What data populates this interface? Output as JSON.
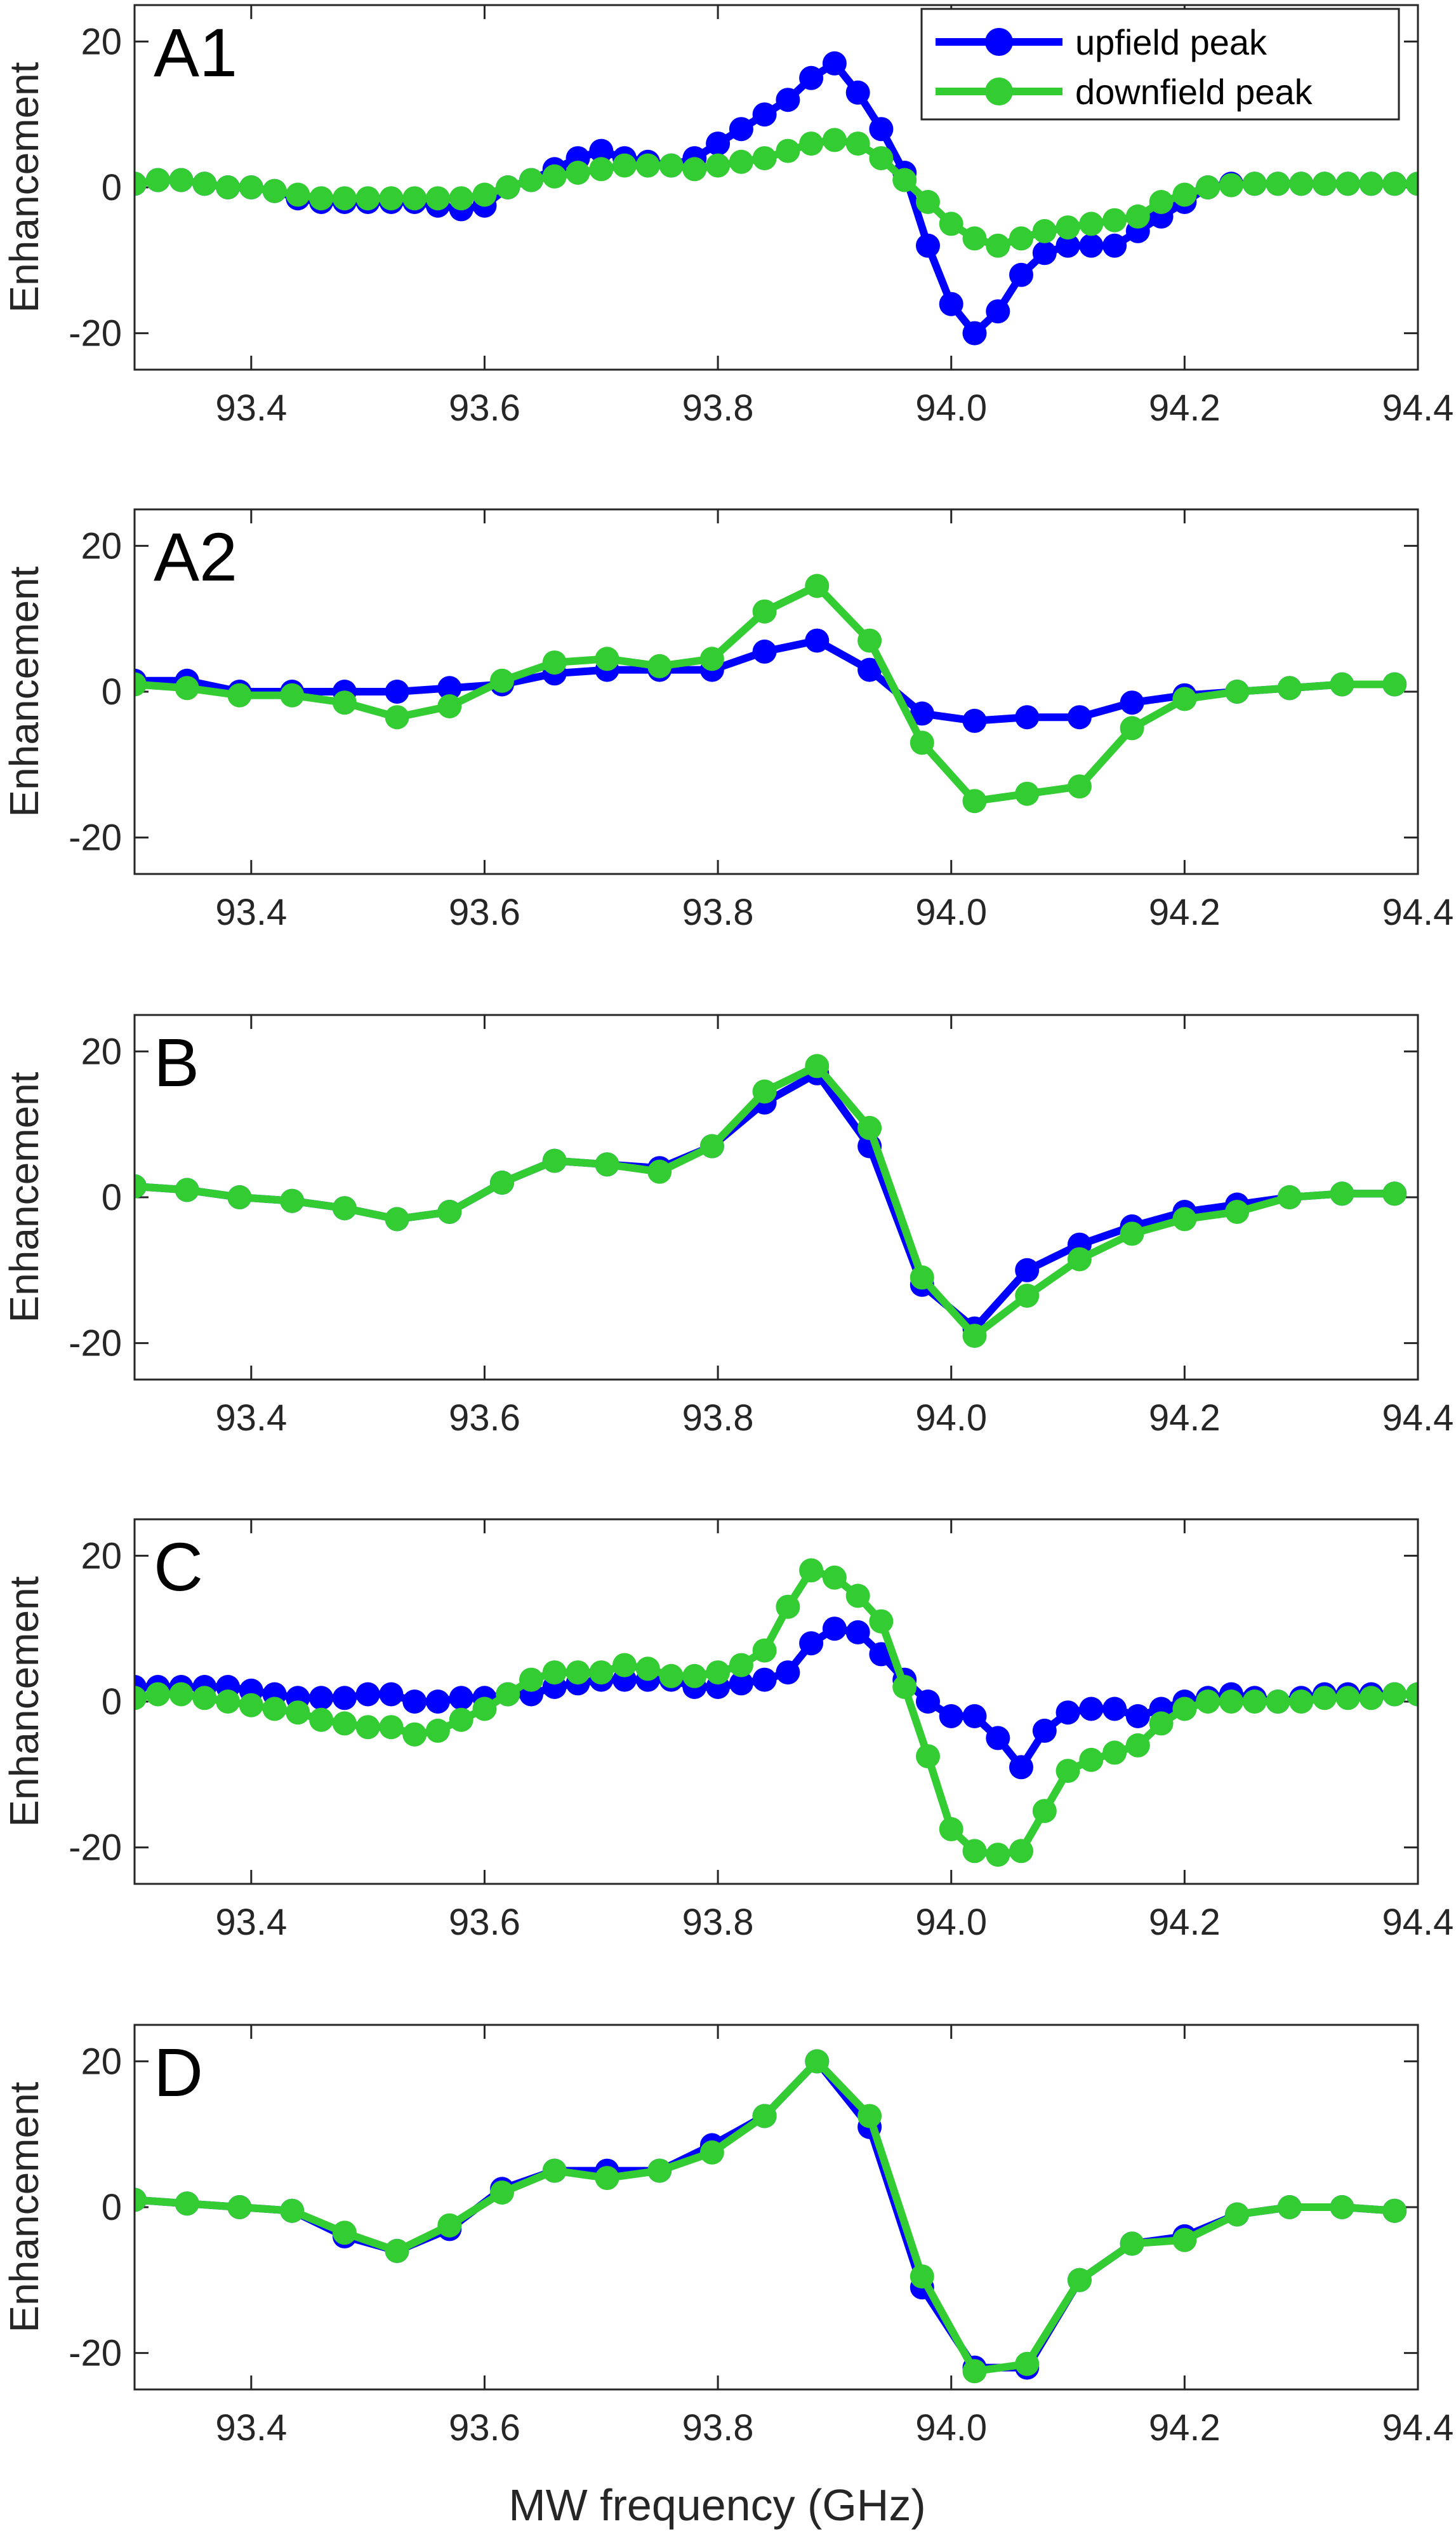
{
  "chart_data": {
    "type": "line",
    "xlabel": "MW frequency (GHz)",
    "ylabel": "Enhancement",
    "xlim": [
      93.3,
      94.4
    ],
    "ylim": [
      -25,
      25
    ],
    "xticks": [
      "93.4",
      "93.6",
      "93.8",
      "94.0",
      "94.2",
      "94.4"
    ],
    "xtick_values": [
      93.4,
      93.6,
      93.8,
      94.0,
      94.2,
      94.4
    ],
    "yticks": [
      "20",
      "0",
      "-20"
    ],
    "ytick_values": [
      20,
      0,
      -20
    ],
    "legend": {
      "placement": "top-right",
      "panel": 0,
      "entries": [
        "upfield peak",
        "downfield peak"
      ]
    },
    "series_styles": [
      {
        "name": "upfield peak",
        "color": "#0000ff"
      },
      {
        "name": "downfield peak",
        "color": "#33cc33"
      }
    ],
    "panels": [
      {
        "label": "A1",
        "series": [
          {
            "name": "upfield peak",
            "x": [
              93.3,
              93.32,
              93.34,
              93.36,
              93.38,
              93.4,
              93.42,
              93.44,
              93.46,
              93.48,
              93.5,
              93.52,
              93.54,
              93.56,
              93.58,
              93.6,
              93.62,
              93.64,
              93.66,
              93.68,
              93.7,
              93.72,
              93.74,
              93.76,
              93.78,
              93.8,
              93.82,
              93.84,
              93.86,
              93.88,
              93.9,
              93.92,
              93.94,
              93.96,
              93.98,
              94.0,
              94.02,
              94.04,
              94.06,
              94.08,
              94.1,
              94.12,
              94.14,
              94.16,
              94.18,
              94.2,
              94.22,
              94.24,
              94.26,
              94.28,
              94.3,
              94.32,
              94.34,
              94.36,
              94.38,
              94.4
            ],
            "y": [
              0.5,
              1,
              1,
              0.5,
              0,
              0,
              -0.5,
              -1.5,
              -2,
              -2,
              -2,
              -2,
              -2,
              -2.5,
              -3,
              -2.5,
              0,
              1,
              2.5,
              4,
              5,
              4,
              3.5,
              3,
              4,
              6,
              8,
              10,
              12,
              15,
              17,
              13,
              8,
              2,
              -8,
              -16,
              -20,
              -17,
              -12,
              -9,
              -8,
              -8,
              -8,
              -6,
              -4,
              -2,
              0,
              0.5,
              0.5,
              0.5,
              0.5,
              0.5,
              0.5,
              0.5,
              0.5,
              0.5
            ]
          },
          {
            "name": "downfield peak",
            "x": [
              93.3,
              93.32,
              93.34,
              93.36,
              93.38,
              93.4,
              93.42,
              93.44,
              93.46,
              93.48,
              93.5,
              93.52,
              93.54,
              93.56,
              93.58,
              93.6,
              93.62,
              93.64,
              93.66,
              93.68,
              93.7,
              93.72,
              93.74,
              93.76,
              93.78,
              93.8,
              93.82,
              93.84,
              93.86,
              93.88,
              93.9,
              93.92,
              93.94,
              93.96,
              93.98,
              94.0,
              94.02,
              94.04,
              94.06,
              94.08,
              94.1,
              94.12,
              94.14,
              94.16,
              94.18,
              94.2,
              94.22,
              94.24,
              94.26,
              94.28,
              94.3,
              94.32,
              94.34,
              94.36,
              94.38,
              94.4
            ],
            "y": [
              0.5,
              1,
              1,
              0.5,
              0,
              0,
              -0.5,
              -1,
              -1.5,
              -1.5,
              -1.5,
              -1.5,
              -1.5,
              -1.5,
              -1.5,
              -1,
              0,
              1,
              1.5,
              2,
              2.5,
              3,
              3,
              3,
              2.5,
              3,
              3.5,
              4,
              5,
              6,
              6.5,
              6,
              4,
              1,
              -2,
              -5,
              -7,
              -8,
              -7,
              -6,
              -5.5,
              -5,
              -4.5,
              -4,
              -2,
              -1,
              0,
              0.3,
              0.5,
              0.5,
              0.5,
              0.5,
              0.5,
              0.5,
              0.5,
              0.5
            ]
          }
        ]
      },
      {
        "label": "A2",
        "series": [
          {
            "name": "upfield peak",
            "x": [
              93.3,
              93.345,
              93.39,
              93.435,
              93.48,
              93.525,
              93.57,
              93.615,
              93.66,
              93.705,
              93.75,
              93.795,
              93.84,
              93.885,
              93.93,
              93.975,
              94.02,
              94.065,
              94.11,
              94.155,
              94.2,
              94.245,
              94.29,
              94.335,
              94.38
            ],
            "y": [
              1.5,
              1.5,
              0,
              0,
              0,
              0,
              0.5,
              1,
              2.5,
              3,
              3,
              3,
              5.5,
              7,
              3,
              -3,
              -4,
              -3.5,
              -3.5,
              -1.5,
              -0.5,
              0,
              0.5,
              1,
              1
            ]
          },
          {
            "name": "downfield peak",
            "x": [
              93.3,
              93.345,
              93.39,
              93.435,
              93.48,
              93.525,
              93.57,
              93.615,
              93.66,
              93.705,
              93.75,
              93.795,
              93.84,
              93.885,
              93.93,
              93.975,
              94.02,
              94.065,
              94.11,
              94.155,
              94.2,
              94.245,
              94.29,
              94.335,
              94.38
            ],
            "y": [
              1,
              0.5,
              -0.5,
              -0.5,
              -1.5,
              -3.5,
              -2,
              1.5,
              4,
              4.5,
              3.5,
              4.5,
              11,
              14.5,
              7,
              -7,
              -15,
              -14,
              -13,
              -5,
              -1,
              0,
              0.5,
              1,
              1
            ]
          }
        ]
      },
      {
        "label": "B",
        "series": [
          {
            "name": "upfield peak",
            "x": [
              93.3,
              93.345,
              93.39,
              93.435,
              93.48,
              93.525,
              93.57,
              93.615,
              93.66,
              93.705,
              93.75,
              93.795,
              93.84,
              93.885,
              93.93,
              93.975,
              94.02,
              94.065,
              94.11,
              94.155,
              94.2,
              94.245,
              94.29,
              94.335,
              94.38
            ],
            "y": [
              1.5,
              1,
              0,
              -0.5,
              -1.5,
              -3,
              -2,
              2,
              5,
              4.5,
              4,
              7,
              13,
              17,
              7,
              -12,
              -18,
              -10,
              -6.5,
              -4,
              -2,
              -1,
              0,
              0.5,
              0.5
            ]
          },
          {
            "name": "downfield peak",
            "x": [
              93.3,
              93.345,
              93.39,
              93.435,
              93.48,
              93.525,
              93.57,
              93.615,
              93.66,
              93.705,
              93.75,
              93.795,
              93.84,
              93.885,
              93.93,
              93.975,
              94.02,
              94.065,
              94.11,
              94.155,
              94.2,
              94.245,
              94.29,
              94.335,
              94.38
            ],
            "y": [
              1.5,
              1,
              0,
              -0.5,
              -1.5,
              -3,
              -2,
              2,
              5,
              4.5,
              3.5,
              7,
              14.5,
              18,
              9.5,
              -11,
              -19,
              -13.5,
              -8.5,
              -5,
              -3,
              -2,
              0,
              0.5,
              0.5
            ]
          }
        ]
      },
      {
        "label": "C",
        "series": [
          {
            "name": "upfield peak",
            "x": [
              93.3,
              93.32,
              93.34,
              93.36,
              93.38,
              93.4,
              93.42,
              93.44,
              93.46,
              93.48,
              93.5,
              93.52,
              93.54,
              93.56,
              93.58,
              93.6,
              93.62,
              93.64,
              93.66,
              93.68,
              93.7,
              93.72,
              93.74,
              93.76,
              93.78,
              93.8,
              93.82,
              93.84,
              93.86,
              93.88,
              93.9,
              93.92,
              93.94,
              93.96,
              93.98,
              94.0,
              94.02,
              94.04,
              94.06,
              94.08,
              94.1,
              94.12,
              94.14,
              94.16,
              94.18,
              94.2,
              94.22,
              94.24,
              94.26,
              94.28,
              94.3,
              94.32,
              94.34,
              94.36,
              94.38,
              94.4
            ],
            "y": [
              2,
              2,
              2,
              2,
              2,
              1.5,
              1,
              0.5,
              0.5,
              0.5,
              1,
              1,
              0,
              0,
              0.5,
              0.5,
              1,
              1,
              2,
              2.5,
              3,
              3,
              3,
              3,
              2,
              2,
              2.5,
              3,
              4,
              8,
              10,
              9.5,
              6.5,
              3,
              0,
              -2,
              -2,
              -5,
              -9,
              -4,
              -1.5,
              -1,
              -1,
              -2,
              -1,
              0,
              0.5,
              1,
              0.5,
              0,
              0.5,
              1,
              1,
              1,
              1,
              1
            ]
          },
          {
            "name": "downfield peak",
            "x": [
              93.3,
              93.32,
              93.34,
              93.36,
              93.38,
              93.4,
              93.42,
              93.44,
              93.46,
              93.48,
              93.5,
              93.52,
              93.54,
              93.56,
              93.58,
              93.6,
              93.62,
              93.64,
              93.66,
              93.68,
              93.7,
              93.72,
              93.74,
              93.76,
              93.78,
              93.8,
              93.82,
              93.84,
              93.86,
              93.88,
              93.9,
              93.92,
              93.94,
              93.96,
              93.98,
              94.0,
              94.02,
              94.04,
              94.06,
              94.08,
              94.1,
              94.12,
              94.14,
              94.16,
              94.18,
              94.2,
              94.22,
              94.24,
              94.26,
              94.28,
              94.3,
              94.32,
              94.34,
              94.36,
              94.38,
              94.4
            ],
            "y": [
              0.5,
              1,
              1,
              0.5,
              0,
              -0.5,
              -1,
              -1.5,
              -2.5,
              -3,
              -3.5,
              -3.5,
              -4.5,
              -4,
              -2.5,
              -1,
              1,
              3,
              4,
              4,
              4,
              5,
              4.5,
              3.5,
              3.5,
              4,
              5,
              7,
              13,
              18,
              17,
              14.5,
              11,
              2,
              -7.5,
              -17.5,
              -20.5,
              -21,
              -20.5,
              -15,
              -9.5,
              -8,
              -7,
              -6,
              -3,
              -1,
              0,
              0,
              0,
              0,
              0,
              0.5,
              0.5,
              0.5,
              1,
              1
            ]
          }
        ]
      },
      {
        "label": "D",
        "series": [
          {
            "name": "upfield peak",
            "x": [
              93.3,
              93.345,
              93.39,
              93.435,
              93.48,
              93.525,
              93.57,
              93.615,
              93.66,
              93.705,
              93.75,
              93.795,
              93.84,
              93.885,
              93.93,
              93.975,
              94.02,
              94.065,
              94.11,
              94.155,
              94.2,
              94.245,
              94.29,
              94.335,
              94.38
            ],
            "y": [
              1,
              0.5,
              0,
              -0.5,
              -4,
              -6,
              -3,
              2.5,
              5,
              5,
              5,
              8.5,
              12.5,
              20,
              11,
              -11,
              -22,
              -22,
              -10,
              -5,
              -4,
              -1,
              0,
              0,
              -0.5
            ]
          },
          {
            "name": "downfield peak",
            "x": [
              93.3,
              93.345,
              93.39,
              93.435,
              93.48,
              93.525,
              93.57,
              93.615,
              93.66,
              93.705,
              93.75,
              93.795,
              93.84,
              93.885,
              93.93,
              93.975,
              94.02,
              94.065,
              94.11,
              94.155,
              94.2,
              94.245,
              94.29,
              94.335,
              94.38
            ],
            "y": [
              1,
              0.5,
              0,
              -0.5,
              -3.5,
              -6,
              -2.5,
              2,
              5,
              4,
              5,
              7.5,
              12.5,
              20,
              12.5,
              -9.5,
              -22.5,
              -21.5,
              -10,
              -5,
              -4.5,
              -1,
              0,
              0,
              -0.5
            ]
          }
        ]
      }
    ]
  }
}
